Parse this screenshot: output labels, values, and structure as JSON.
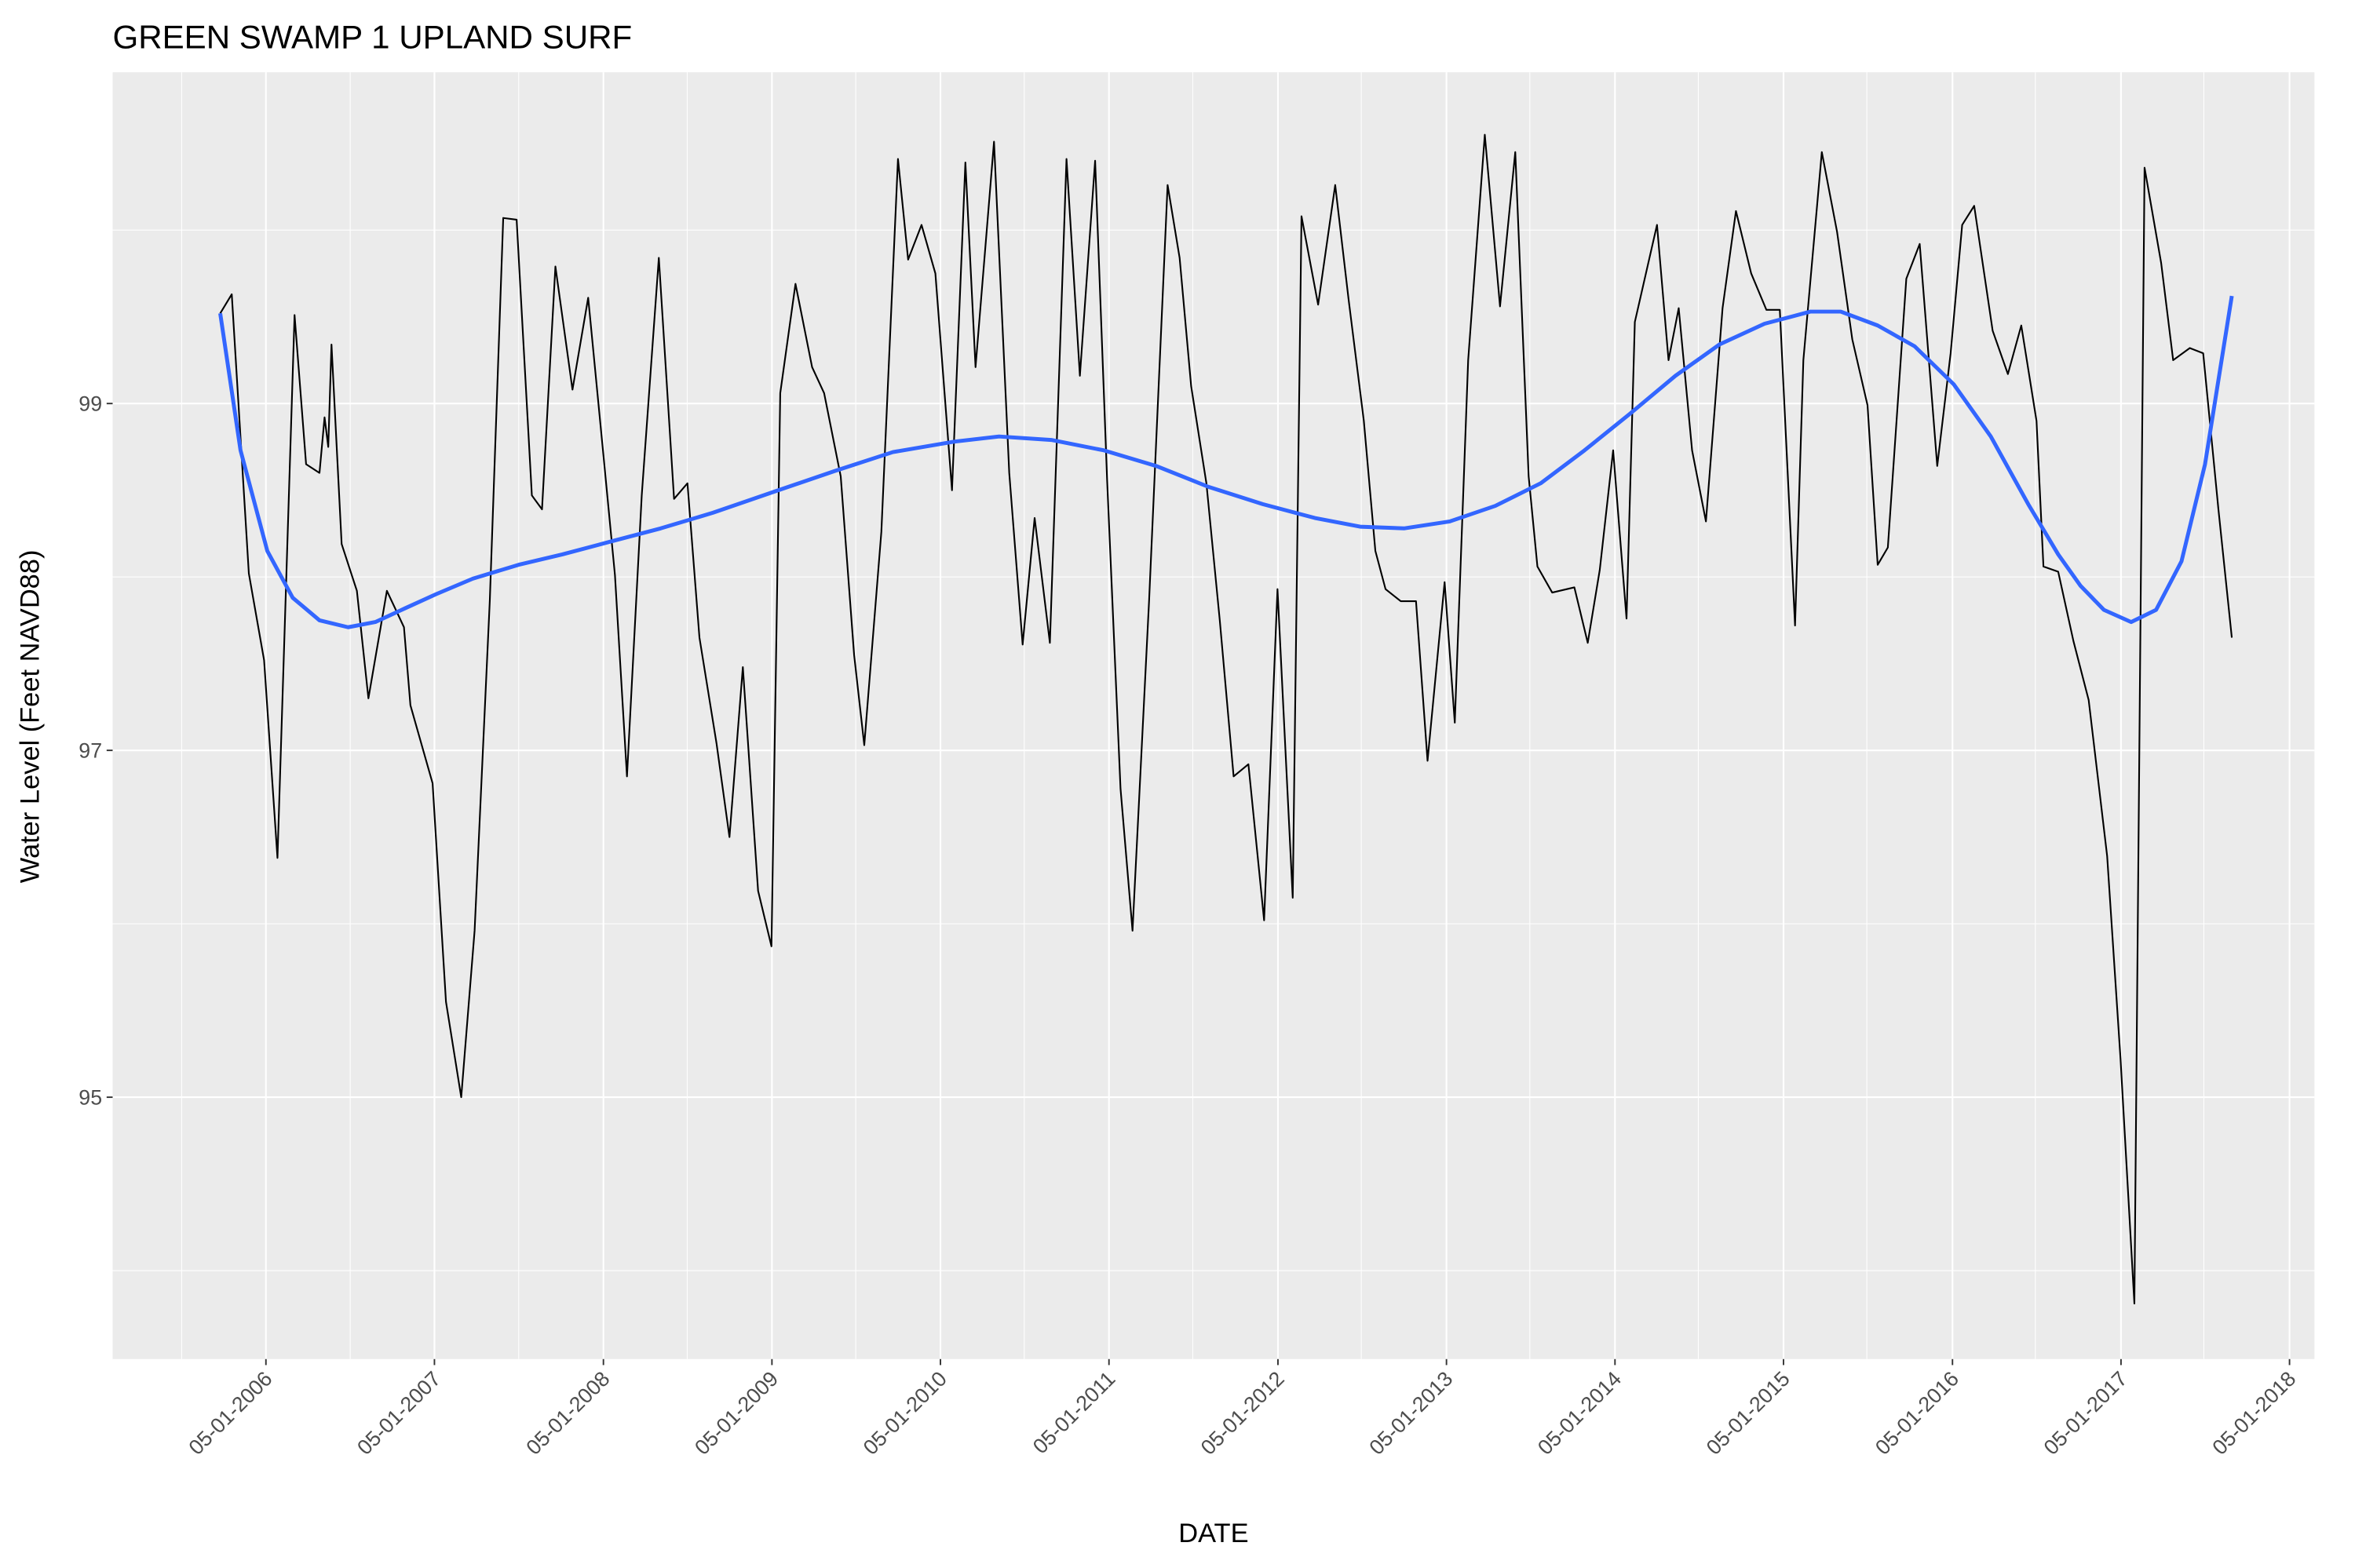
{
  "chart_data": {
    "type": "line",
    "title": "GREEN SWAMP 1 UPLAND SURF",
    "x_label": "DATE",
    "y_label": "Water Level (Feet NAVD88)",
    "xlim": [
      "2005-06-03",
      "2018-06-24"
    ],
    "ylim": [
      93.49,
      100.91
    ],
    "xticks": [
      {
        "value": "2006-05-01",
        "label": "05-01-2006"
      },
      {
        "value": "2007-05-01",
        "label": "05-01-2007"
      },
      {
        "value": "2008-05-01",
        "label": "05-01-2008"
      },
      {
        "value": "2009-05-01",
        "label": "05-01-2009"
      },
      {
        "value": "2010-05-01",
        "label": "05-01-2010"
      },
      {
        "value": "2011-05-01",
        "label": "05-01-2011"
      },
      {
        "value": "2012-05-01",
        "label": "05-01-2012"
      },
      {
        "value": "2013-05-01",
        "label": "05-01-2013"
      },
      {
        "value": "2014-05-01",
        "label": "05-01-2014"
      },
      {
        "value": "2015-05-01",
        "label": "05-01-2015"
      },
      {
        "value": "2016-05-01",
        "label": "05-01-2016"
      },
      {
        "value": "2017-05-01",
        "label": "05-01-2017"
      },
      {
        "value": "2018-05-01",
        "label": "05-01-2018"
      }
    ],
    "yticks": [
      95,
      97,
      99
    ],
    "grid": true,
    "series": [
      {
        "color": "#000000",
        "width": 1.1,
        "x": [
          "2006-01-22",
          "2006-02-16",
          "2006-03-25",
          "2006-04-27",
          "2006-05-26",
          "2006-07-02",
          "2006-07-27",
          "2006-08-25",
          "2006-09-05",
          "2006-09-13",
          "2006-09-20",
          "2006-10-12",
          "2006-11-14",
          "2006-12-09",
          "2007-01-18",
          "2007-02-24",
          "2007-03-10",
          "2007-04-27",
          "2007-05-26",
          "2007-06-28",
          "2007-07-27",
          "2007-08-29",
          "2007-09-27",
          "2007-10-26",
          "2007-11-28",
          "2007-12-20",
          "2008-01-18",
          "2008-02-24",
          "2008-03-29",
          "2008-04-30",
          "2008-05-26",
          "2008-06-21",
          "2008-07-23",
          "2008-08-29",
          "2008-10-01",
          "2008-10-30",
          "2008-11-25",
          "2009-01-01",
          "2009-01-29",
          "2009-02-27",
          "2009-04-01",
          "2009-04-30",
          "2009-05-19",
          "2009-06-21",
          "2009-07-27",
          "2009-08-22",
          "2009-09-27",
          "2009-10-26",
          "2009-11-17",
          "2009-12-24",
          "2010-01-29",
          "2010-02-20",
          "2010-03-21",
          "2010-04-20",
          "2010-05-26",
          "2010-06-24",
          "2010-07-16",
          "2010-08-25",
          "2010-09-27",
          "2010-10-26",
          "2010-11-21",
          "2010-12-24",
          "2011-01-29",
          "2011-02-27",
          "2011-04-01",
          "2011-04-27",
          "2011-05-26",
          "2011-06-21",
          "2011-07-27",
          "2011-09-05",
          "2011-10-01",
          "2011-10-26",
          "2011-11-28",
          "2011-12-27",
          "2012-01-26",
          "2012-02-27",
          "2012-04-01",
          "2012-04-30",
          "2012-06-02",
          "2012-06-21",
          "2012-07-27",
          "2012-09-02",
          "2012-10-01",
          "2012-11-03",
          "2012-11-28",
          "2012-12-20",
          "2013-01-22",
          "2013-02-24",
          "2013-03-21",
          "2013-04-27",
          "2013-05-19",
          "2013-06-17",
          "2013-07-23",
          "2013-08-25",
          "2013-09-27",
          "2013-10-26",
          "2013-11-14",
          "2013-12-16",
          "2014-02-02",
          "2014-03-03",
          "2014-03-29",
          "2014-04-27",
          "2014-05-26",
          "2014-06-13",
          "2014-07-31",
          "2014-08-25",
          "2014-09-16",
          "2014-10-15",
          "2014-11-14",
          "2014-12-20",
          "2015-01-18",
          "2015-02-20",
          "2015-03-25",
          "2015-04-23",
          "2015-05-26",
          "2015-06-13",
          "2015-07-23",
          "2015-08-25",
          "2015-09-27",
          "2015-10-30",
          "2015-11-21",
          "2015-12-13",
          "2016-01-22",
          "2016-02-20",
          "2016-03-29",
          "2016-04-27",
          "2016-05-22",
          "2016-06-17",
          "2016-07-27",
          "2016-08-29",
          "2016-09-27",
          "2016-10-30",
          "2016-11-14",
          "2016-12-16",
          "2017-01-18",
          "2017-02-20",
          "2017-04-01",
          "2017-04-30",
          "2017-05-30",
          "2017-06-21",
          "2017-07-27",
          "2017-08-22",
          "2017-09-27",
          "2017-10-26",
          "2017-11-28",
          "2017-12-27"
        ],
        "values": [
          99.52,
          99.63,
          98.02,
          97.52,
          96.38,
          99.51,
          98.65,
          98.6,
          98.92,
          98.75,
          99.34,
          98.19,
          97.92,
          97.3,
          97.92,
          97.71,
          97.26,
          96.81,
          95.55,
          95.0,
          95.96,
          97.87,
          100.07,
          100.06,
          98.47,
          98.39,
          99.79,
          99.08,
          99.61,
          98.73,
          98.01,
          96.85,
          98.47,
          99.84,
          98.45,
          98.54,
          97.65,
          97.04,
          96.5,
          97.48,
          96.19,
          95.87,
          99.06,
          99.69,
          99.21,
          99.06,
          98.58,
          97.55,
          97.03,
          98.26,
          100.41,
          99.83,
          100.03,
          99.75,
          98.5,
          100.39,
          99.21,
          100.51,
          98.6,
          97.61,
          98.34,
          97.62,
          100.41,
          99.16,
          100.4,
          98.56,
          96.78,
          95.96,
          97.87,
          100.26,
          99.84,
          99.1,
          98.54,
          97.75,
          96.85,
          96.92,
          96.02,
          97.93,
          96.15,
          100.08,
          99.57,
          100.26,
          99.6,
          98.9,
          98.15,
          97.93,
          97.86,
          97.86,
          96.94,
          97.97,
          97.16,
          99.25,
          100.55,
          99.56,
          100.45,
          98.58,
          98.06,
          97.91,
          97.94,
          97.62,
          98.04,
          98.73,
          97.76,
          99.47,
          100.03,
          99.25,
          99.55,
          98.73,
          98.32,
          99.55,
          100.11,
          99.75,
          99.54,
          99.54,
          97.72,
          99.25,
          100.45,
          99.99,
          99.37,
          98.99,
          98.07,
          98.17,
          99.72,
          99.92,
          98.64,
          99.29,
          100.03,
          100.14,
          99.42,
          99.17,
          99.45,
          98.9,
          98.06,
          98.03,
          97.63,
          97.29,
          96.39,
          95.22,
          93.81,
          100.36,
          99.81,
          99.25,
          99.32,
          99.29,
          98.39,
          97.65
        ]
      },
      {
        "color": "#3366ff",
        "width": 2.6,
        "x": [
          "2006-01-22",
          "2006-03-07",
          "2006-05-04",
          "2006-06-28",
          "2006-08-25",
          "2006-10-26",
          "2006-12-24",
          "2007-02-27",
          "2007-05-04",
          "2007-07-23",
          "2007-10-30",
          "2008-02-02",
          "2008-05-11",
          "2008-09-02",
          "2008-12-24",
          "2009-05-04",
          "2009-09-13",
          "2010-01-18",
          "2010-05-30",
          "2010-09-05",
          "2010-12-27",
          "2011-04-20",
          "2011-08-11",
          "2011-12-02",
          "2012-03-29",
          "2012-07-20",
          "2012-10-26",
          "2013-01-29",
          "2013-05-08",
          "2013-08-15",
          "2013-11-21",
          "2014-02-24",
          "2014-06-02",
          "2014-09-09",
          "2014-12-13",
          "2015-03-21",
          "2015-06-28",
          "2015-09-02",
          "2015-11-21",
          "2016-02-09",
          "2016-05-04",
          "2016-07-23",
          "2016-10-12",
          "2016-12-16",
          "2017-02-02",
          "2017-03-25",
          "2017-05-23",
          "2017-07-16",
          "2017-09-09",
          "2017-10-30",
          "2017-12-27"
        ],
        "values": [
          99.52,
          98.73,
          98.15,
          97.88,
          97.75,
          97.71,
          97.74,
          97.82,
          97.9,
          97.99,
          98.07,
          98.13,
          98.2,
          98.28,
          98.37,
          98.49,
          98.61,
          98.72,
          98.78,
          98.81,
          98.79,
          98.73,
          98.64,
          98.52,
          98.42,
          98.34,
          98.29,
          98.28,
          98.32,
          98.41,
          98.54,
          98.73,
          98.94,
          99.16,
          99.34,
          99.46,
          99.53,
          99.53,
          99.45,
          99.33,
          99.11,
          98.81,
          98.42,
          98.13,
          97.95,
          97.81,
          97.74,
          97.81,
          98.09,
          98.65,
          99.62
        ]
      }
    ]
  }
}
